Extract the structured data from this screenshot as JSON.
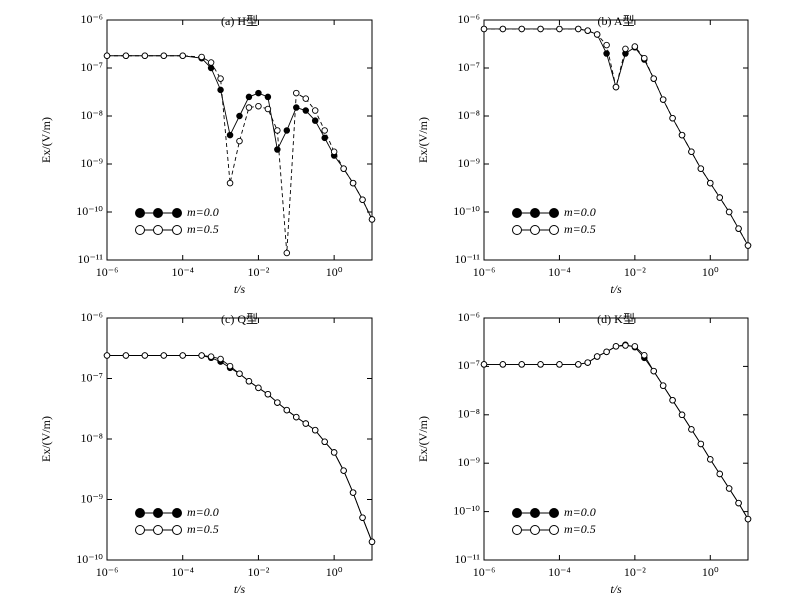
{
  "chart_data": [
    {
      "type": "line",
      "title": "(a)  H型",
      "xlabel": "t/s",
      "ylabel": "Ex/(V/m)",
      "log_x": true,
      "log_y": true,
      "xlim": [
        1e-06,
        10
      ],
      "ylim": [
        1e-11,
        1e-06
      ],
      "xticks": [
        {
          "value": 1e-06,
          "label": "10⁻⁶"
        },
        {
          "value": 0.0001,
          "label": "10⁻⁴"
        },
        {
          "value": 0.01,
          "label": "10⁻²"
        },
        {
          "value": 1,
          "label": "10⁰"
        }
      ],
      "yticks": [
        {
          "value": 1e-11,
          "label": "10⁻¹¹"
        },
        {
          "value": 1e-10,
          "label": "10⁻¹⁰"
        },
        {
          "value": 1e-09,
          "label": "10⁻⁹"
        },
        {
          "value": 1e-08,
          "label": "10⁻⁸"
        },
        {
          "value": 1e-07,
          "label": "10⁻⁷"
        },
        {
          "value": 1e-06,
          "label": "10⁻⁶"
        }
      ],
      "x": [
        1e-06,
        3.16e-06,
        1e-05,
        3.16e-05,
        0.0001,
        0.000316,
        0.000562,
        0.001,
        0.00178,
        0.00316,
        0.00562,
        0.01,
        0.0178,
        0.0316,
        0.0562,
        0.1,
        0.178,
        0.316,
        0.562,
        1,
        1.78,
        3.16,
        5.62,
        10
      ],
      "series": [
        {
          "name": "m=0.0",
          "color": "#000000",
          "marker": "filled",
          "line_style": "solid",
          "values": [
            1.8e-07,
            1.8e-07,
            1.8e-07,
            1.8e-07,
            1.8e-07,
            1.6e-07,
            1e-07,
            3.5e-08,
            4e-09,
            1e-08,
            2.5e-08,
            3e-08,
            2.5e-08,
            2e-09,
            5e-09,
            1.5e-08,
            1.3e-08,
            8e-09,
            3.5e-09,
            1.5e-09,
            8e-10,
            4e-10,
            1.8e-10,
            7e-11
          ]
        },
        {
          "name": "m=0.5",
          "color": "#000000",
          "marker": "open",
          "line_style": "dashed",
          "values": [
            1.8e-07,
            1.8e-07,
            1.8e-07,
            1.8e-07,
            1.8e-07,
            1.7e-07,
            1.3e-07,
            6e-08,
            4e-10,
            3e-09,
            1.5e-08,
            1.6e-08,
            1.4e-08,
            5e-09,
            1.4e-11,
            3e-08,
            2.3e-08,
            1.3e-08,
            5e-09,
            1.8e-09,
            8e-10,
            4e-10,
            1.8e-10,
            7e-11
          ]
        }
      ]
    },
    {
      "type": "line",
      "title": "(b) A型",
      "xlabel": "t/s",
      "ylabel": "Ex/(V/m)",
      "log_x": true,
      "log_y": true,
      "xlim": [
        1e-06,
        10
      ],
      "ylim": [
        1e-11,
        1e-06
      ],
      "xticks": [
        {
          "value": 1e-06,
          "label": "10⁻⁶"
        },
        {
          "value": 0.0001,
          "label": "10⁻⁴"
        },
        {
          "value": 0.01,
          "label": "10⁻²"
        },
        {
          "value": 1,
          "label": "10⁰"
        }
      ],
      "yticks": [
        {
          "value": 1e-11,
          "label": "10⁻¹¹"
        },
        {
          "value": 1e-10,
          "label": "10⁻¹⁰"
        },
        {
          "value": 1e-09,
          "label": "10⁻⁹"
        },
        {
          "value": 1e-08,
          "label": "10⁻⁸"
        },
        {
          "value": 1e-07,
          "label": "10⁻⁷"
        },
        {
          "value": 1e-06,
          "label": "10⁻⁶"
        }
      ],
      "x": [
        1e-06,
        3.16e-06,
        1e-05,
        3.16e-05,
        0.0001,
        0.000316,
        0.000562,
        0.001,
        0.00178,
        0.00316,
        0.00562,
        0.01,
        0.0178,
        0.0316,
        0.0562,
        0.1,
        0.178,
        0.316,
        0.562,
        1,
        1.78,
        3.16,
        5.62,
        10
      ],
      "series": [
        {
          "name": "m=0.0",
          "color": "#000000",
          "marker": "filled",
          "line_style": "solid",
          "values": [
            6.5e-07,
            6.5e-07,
            6.5e-07,
            6.5e-07,
            6.5e-07,
            6.5e-07,
            6e-07,
            5e-07,
            2e-07,
            4e-08,
            2e-07,
            2.7e-07,
            1.5e-07,
            6e-08,
            2.2e-08,
            9e-09,
            4e-09,
            1.8e-09,
            8e-10,
            4e-10,
            2e-10,
            1e-10,
            4.5e-11,
            2e-11
          ]
        },
        {
          "name": "m=0.5",
          "color": "#000000",
          "marker": "open",
          "line_style": "dashed",
          "values": [
            6.5e-07,
            6.5e-07,
            6.5e-07,
            6.5e-07,
            6.5e-07,
            6.5e-07,
            6e-07,
            5e-07,
            3e-07,
            4e-08,
            2.5e-07,
            2.8e-07,
            1.6e-07,
            6e-08,
            2.2e-08,
            9e-09,
            4e-09,
            1.8e-09,
            8e-10,
            4e-10,
            2e-10,
            1e-10,
            4.5e-11,
            2e-11
          ]
        }
      ]
    },
    {
      "type": "line",
      "title": "(c) Q型",
      "xlabel": "t/s",
      "ylabel": "Ex/(V/m)",
      "log_x": true,
      "log_y": true,
      "xlim": [
        1e-06,
        10
      ],
      "ylim": [
        1e-10,
        1e-06
      ],
      "xticks": [
        {
          "value": 1e-06,
          "label": "10⁻⁶"
        },
        {
          "value": 0.0001,
          "label": "10⁻⁴"
        },
        {
          "value": 0.01,
          "label": "10⁻²"
        },
        {
          "value": 1,
          "label": "10⁰"
        }
      ],
      "yticks": [
        {
          "value": 1e-10,
          "label": "10⁻¹⁰"
        },
        {
          "value": 1e-09,
          "label": "10⁻⁹"
        },
        {
          "value": 1e-08,
          "label": "10⁻⁸"
        },
        {
          "value": 1e-07,
          "label": "10⁻⁷"
        },
        {
          "value": 1e-06,
          "label": "10⁻⁶"
        }
      ],
      "x": [
        1e-06,
        3.16e-06,
        1e-05,
        3.16e-05,
        0.0001,
        0.000316,
        0.000562,
        0.001,
        0.00178,
        0.00316,
        0.00562,
        0.01,
        0.0178,
        0.0316,
        0.0562,
        0.1,
        0.178,
        0.316,
        0.562,
        1,
        1.78,
        3.16,
        5.62,
        10
      ],
      "series": [
        {
          "name": "m=0.0",
          "color": "#000000",
          "marker": "filled",
          "line_style": "solid",
          "values": [
            2.4e-07,
            2.4e-07,
            2.4e-07,
            2.4e-07,
            2.4e-07,
            2.4e-07,
            2.2e-07,
            1.9e-07,
            1.5e-07,
            1.2e-07,
            9e-08,
            7e-08,
            5.5e-08,
            4e-08,
            3e-08,
            2.3e-08,
            1.8e-08,
            1.4e-08,
            9e-09,
            6e-09,
            3e-09,
            1.3e-09,
            5e-10,
            2e-10
          ]
        },
        {
          "name": "m=0.5",
          "color": "#000000",
          "marker": "open",
          "line_style": "solid",
          "values": [
            2.4e-07,
            2.4e-07,
            2.4e-07,
            2.4e-07,
            2.4e-07,
            2.4e-07,
            2.3e-07,
            2.1e-07,
            1.6e-07,
            1.2e-07,
            9e-08,
            7e-08,
            5.5e-08,
            4e-08,
            3e-08,
            2.3e-08,
            1.8e-08,
            1.4e-08,
            9e-09,
            6e-09,
            3e-09,
            1.3e-09,
            5e-10,
            2e-10
          ]
        }
      ]
    },
    {
      "type": "line",
      "title": "(d) K型",
      "xlabel": "t/s",
      "ylabel": "Ex/(V/m)",
      "log_x": true,
      "log_y": true,
      "xlim": [
        1e-06,
        10
      ],
      "ylim": [
        1e-11,
        1e-06
      ],
      "xticks": [
        {
          "value": 1e-06,
          "label": "10⁻⁶"
        },
        {
          "value": 0.0001,
          "label": "10⁻⁴"
        },
        {
          "value": 0.01,
          "label": "10⁻²"
        },
        {
          "value": 1,
          "label": "10⁰"
        }
      ],
      "yticks": [
        {
          "value": 1e-11,
          "label": "10⁻¹¹"
        },
        {
          "value": 1e-10,
          "label": "10⁻¹⁰"
        },
        {
          "value": 1e-09,
          "label": "10⁻⁹"
        },
        {
          "value": 1e-08,
          "label": "10⁻⁸"
        },
        {
          "value": 1e-07,
          "label": "10⁻⁷"
        },
        {
          "value": 1e-06,
          "label": "10⁻⁶"
        }
      ],
      "x": [
        1e-06,
        3.16e-06,
        1e-05,
        3.16e-05,
        0.0001,
        0.000316,
        0.000562,
        0.001,
        0.00178,
        0.00316,
        0.00562,
        0.01,
        0.0178,
        0.0316,
        0.0562,
        0.1,
        0.178,
        0.316,
        0.562,
        1,
        1.78,
        3.16,
        5.62,
        10
      ],
      "series": [
        {
          "name": "m=0.0",
          "color": "#000000",
          "marker": "filled",
          "line_style": "solid",
          "values": [
            1.1e-07,
            1.1e-07,
            1.1e-07,
            1.1e-07,
            1.1e-07,
            1.1e-07,
            1.2e-07,
            1.6e-07,
            2e-07,
            2.6e-07,
            2.8e-07,
            2.5e-07,
            1.5e-07,
            8e-08,
            4e-08,
            2e-08,
            1e-08,
            5e-09,
            2.5e-09,
            1.2e-09,
            6e-10,
            3e-10,
            1.5e-10,
            7e-11
          ]
        },
        {
          "name": "m=0.5",
          "color": "#000000",
          "marker": "open",
          "line_style": "solid",
          "values": [
            1.1e-07,
            1.1e-07,
            1.1e-07,
            1.1e-07,
            1.1e-07,
            1.1e-07,
            1.2e-07,
            1.6e-07,
            2e-07,
            2.6e-07,
            2.7e-07,
            2.6e-07,
            1.7e-07,
            8e-08,
            4e-08,
            2e-08,
            1e-08,
            5e-09,
            2.5e-09,
            1.2e-09,
            6e-10,
            3e-10,
            1.5e-10,
            7e-11
          ]
        }
      ]
    }
  ]
}
